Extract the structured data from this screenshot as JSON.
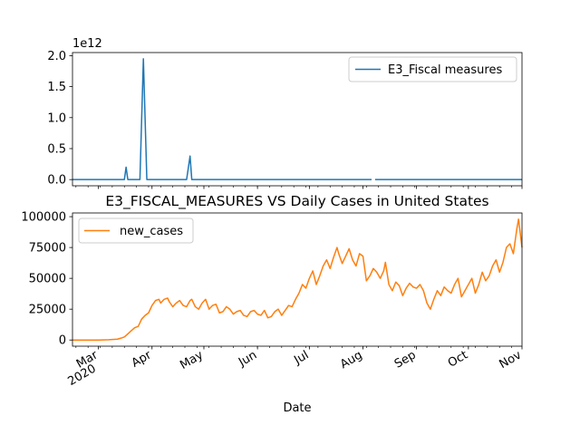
{
  "chart_data": [
    {
      "type": "line",
      "title": "",
      "xlabel": "",
      "ylabel": "",
      "y_offset_label": "1e12",
      "ylim": [
        -0.1,
        2.05
      ],
      "yticks": [
        "0.0",
        "0.5",
        "1.0",
        "1.5",
        "2.0"
      ],
      "ytick_values": [
        0.0,
        0.5,
        1.0,
        1.5,
        2.0
      ],
      "legend": "upper-right",
      "grid": false,
      "series": [
        {
          "name": "E3_Fiscal measures",
          "color": "#1f77b4",
          "points": [
            [
              "2020-02-15",
              0.0
            ],
            [
              "2020-03-16",
              0.0
            ],
            [
              "2020-03-17",
              0.2
            ],
            [
              "2020-03-18",
              0.0
            ],
            [
              "2020-03-25",
              0.0
            ],
            [
              "2020-03-27",
              1.95
            ],
            [
              "2020-03-29",
              0.0
            ],
            [
              "2020-04-21",
              0.0
            ],
            [
              "2020-04-23",
              0.38
            ],
            [
              "2020-04-24",
              0.0
            ],
            [
              "2020-08-06",
              0.0
            ],
            null,
            [
              "2020-08-08",
              0.0
            ],
            [
              "2020-11-01",
              0.0
            ]
          ]
        }
      ]
    },
    {
      "type": "line",
      "title": "E3_FISCAL_MEASURES VS Daily Cases in United States",
      "xlabel": "Date",
      "ylabel": "",
      "ylim": [
        -5000,
        103000
      ],
      "yticks": [
        "0",
        "25000",
        "50000",
        "75000",
        "100000"
      ],
      "ytick_values": [
        0,
        25000,
        50000,
        75000,
        100000
      ],
      "x_major_ticks": [
        {
          "date": "2020-03-01",
          "label": "Mar",
          "sublabel": "2020"
        },
        {
          "date": "2020-04-01",
          "label": "Apr"
        },
        {
          "date": "2020-05-01",
          "label": "May"
        },
        {
          "date": "2020-06-01",
          "label": "Jun"
        },
        {
          "date": "2020-07-01",
          "label": "Jul"
        },
        {
          "date": "2020-08-01",
          "label": "Aug"
        },
        {
          "date": "2020-09-01",
          "label": "Sep"
        },
        {
          "date": "2020-10-01",
          "label": "Oct"
        },
        {
          "date": "2020-11-01",
          "label": "Nov"
        }
      ],
      "legend": "upper-left",
      "grid": false,
      "series": [
        {
          "name": "new_cases",
          "color": "#ff7f0e",
          "points": [
            [
              "2020-02-15",
              0
            ],
            [
              "2020-03-01",
              0
            ],
            [
              "2020-03-07",
              200
            ],
            [
              "2020-03-10",
              500
            ],
            [
              "2020-03-12",
              700
            ],
            [
              "2020-03-14",
              1500
            ],
            [
              "2020-03-16",
              2500
            ],
            [
              "2020-03-18",
              5000
            ],
            [
              "2020-03-20",
              7500
            ],
            [
              "2020-03-22",
              10000
            ],
            [
              "2020-03-24",
              11000
            ],
            [
              "2020-03-26",
              17000
            ],
            [
              "2020-03-28",
              20000
            ],
            [
              "2020-03-30",
              22000
            ],
            [
              "2020-04-01",
              28000
            ],
            [
              "2020-04-03",
              32000
            ],
            [
              "2020-04-05",
              33000
            ],
            [
              "2020-04-06",
              30000
            ],
            [
              "2020-04-08",
              33000
            ],
            [
              "2020-04-10",
              34000
            ],
            [
              "2020-04-11",
              31000
            ],
            [
              "2020-04-13",
              27000
            ],
            [
              "2020-04-15",
              30000
            ],
            [
              "2020-04-17",
              32000
            ],
            [
              "2020-04-19",
              28000
            ],
            [
              "2020-04-21",
              27000
            ],
            [
              "2020-04-23",
              32000
            ],
            [
              "2020-04-24",
              33000
            ],
            [
              "2020-04-26",
              27000
            ],
            [
              "2020-04-28",
              25000
            ],
            [
              "2020-04-30",
              30000
            ],
            [
              "2020-05-02",
              33000
            ],
            [
              "2020-05-04",
              25000
            ],
            [
              "2020-05-06",
              28000
            ],
            [
              "2020-05-08",
              29000
            ],
            [
              "2020-05-10",
              22000
            ],
            [
              "2020-05-12",
              23000
            ],
            [
              "2020-05-14",
              27000
            ],
            [
              "2020-05-16",
              25000
            ],
            [
              "2020-05-18",
              21000
            ],
            [
              "2020-05-20",
              23000
            ],
            [
              "2020-05-22",
              24000
            ],
            [
              "2020-05-24",
              20000
            ],
            [
              "2020-05-26",
              19000
            ],
            [
              "2020-05-28",
              23000
            ],
            [
              "2020-05-30",
              24000
            ],
            [
              "2020-06-01",
              21000
            ],
            [
              "2020-06-03",
              20000
            ],
            [
              "2020-06-05",
              24000
            ],
            [
              "2020-06-07",
              18000
            ],
            [
              "2020-06-09",
              19000
            ],
            [
              "2020-06-11",
              23000
            ],
            [
              "2020-06-13",
              25000
            ],
            [
              "2020-06-15",
              20000
            ],
            [
              "2020-06-17",
              24000
            ],
            [
              "2020-06-19",
              28000
            ],
            [
              "2020-06-21",
              27000
            ],
            [
              "2020-06-23",
              33000
            ],
            [
              "2020-06-25",
              38000
            ],
            [
              "2020-06-27",
              45000
            ],
            [
              "2020-06-29",
              42000
            ],
            [
              "2020-07-01",
              50000
            ],
            [
              "2020-07-03",
              56000
            ],
            [
              "2020-07-05",
              45000
            ],
            [
              "2020-07-07",
              52000
            ],
            [
              "2020-07-09",
              60000
            ],
            [
              "2020-07-11",
              65000
            ],
            [
              "2020-07-13",
              58000
            ],
            [
              "2020-07-15",
              67000
            ],
            [
              "2020-07-17",
              75000
            ],
            [
              "2020-07-18",
              70000
            ],
            [
              "2020-07-20",
              62000
            ],
            [
              "2020-07-22",
              68000
            ],
            [
              "2020-07-24",
              74000
            ],
            [
              "2020-07-26",
              65000
            ],
            [
              "2020-07-28",
              60000
            ],
            [
              "2020-07-30",
              70000
            ],
            [
              "2020-08-01",
              68000
            ],
            [
              "2020-08-03",
              48000
            ],
            [
              "2020-08-05",
              52000
            ],
            [
              "2020-08-07",
              58000
            ],
            [
              "2020-08-09",
              55000
            ],
            [
              "2020-08-11",
              50000
            ],
            [
              "2020-08-13",
              56000
            ],
            [
              "2020-08-14",
              63000
            ],
            [
              "2020-08-16",
              45000
            ],
            [
              "2020-08-18",
              40000
            ],
            [
              "2020-08-20",
              47000
            ],
            [
              "2020-08-22",
              44000
            ],
            [
              "2020-08-24",
              36000
            ],
            [
              "2020-08-26",
              42000
            ],
            [
              "2020-08-28",
              46000
            ],
            [
              "2020-08-30",
              43000
            ],
            [
              "2020-09-01",
              42000
            ],
            [
              "2020-09-03",
              45000
            ],
            [
              "2020-09-05",
              40000
            ],
            [
              "2020-09-07",
              30000
            ],
            [
              "2020-09-09",
              25000
            ],
            [
              "2020-09-11",
              33000
            ],
            [
              "2020-09-13",
              40000
            ],
            [
              "2020-09-15",
              36000
            ],
            [
              "2020-09-17",
              43000
            ],
            [
              "2020-09-19",
              40000
            ],
            [
              "2020-09-21",
              38000
            ],
            [
              "2020-09-23",
              45000
            ],
            [
              "2020-09-25",
              50000
            ],
            [
              "2020-09-27",
              35000
            ],
            [
              "2020-09-29",
              40000
            ],
            [
              "2020-10-01",
              45000
            ],
            [
              "2020-10-03",
              50000
            ],
            [
              "2020-10-05",
              38000
            ],
            [
              "2020-10-07",
              45000
            ],
            [
              "2020-10-09",
              55000
            ],
            [
              "2020-10-11",
              48000
            ],
            [
              "2020-10-13",
              52000
            ],
            [
              "2020-10-15",
              60000
            ],
            [
              "2020-10-17",
              65000
            ],
            [
              "2020-10-19",
              55000
            ],
            [
              "2020-10-21",
              63000
            ],
            [
              "2020-10-23",
              75000
            ],
            [
              "2020-10-25",
              78000
            ],
            [
              "2020-10-27",
              70000
            ],
            [
              "2020-10-29",
              90000
            ],
            [
              "2020-10-30",
              98000
            ],
            [
              "2020-11-01",
              75000
            ]
          ]
        }
      ]
    }
  ]
}
